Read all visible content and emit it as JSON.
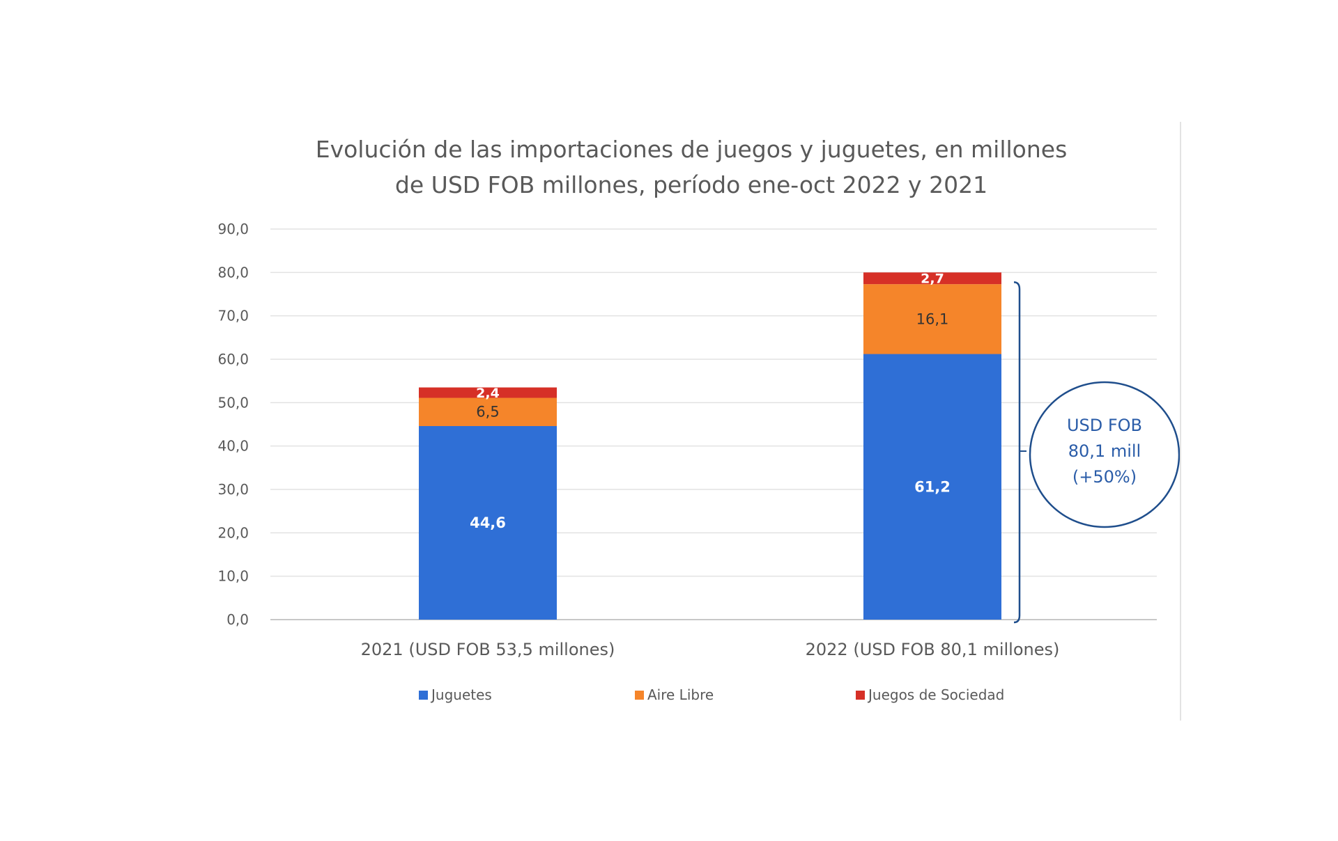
{
  "chart_data": {
    "type": "bar",
    "stacked": true,
    "title_lines": [
      "Evolución de las importaciones de juegos y juguetes, en millones",
      "de USD FOB millones, período ene-oct 2022 y 2021"
    ],
    "categories": [
      "2021 (USD FOB 53,5 millones)",
      "2022 (USD FOB 80,1 millones)"
    ],
    "series": [
      {
        "name": "Juguetes",
        "values": [
          44.6,
          61.2
        ],
        "labels": [
          "44,6",
          "61,2"
        ],
        "color": "#2f6fd6",
        "label_color": "#ffffff"
      },
      {
        "name": "Aire Libre",
        "values": [
          6.5,
          16.1
        ],
        "labels": [
          "6,5",
          "16,1"
        ],
        "color": "#f5852a",
        "label_color": "#333333"
      },
      {
        "name": "Juegos de Sociedad",
        "values": [
          2.4,
          2.7
        ],
        "labels": [
          "2,4",
          "2,7"
        ],
        "color": "#d63027",
        "label_color": "#ffffff"
      }
    ],
    "ylim": [
      0,
      90
    ],
    "yticks": [
      0,
      10,
      20,
      30,
      40,
      50,
      60,
      70,
      80,
      90
    ],
    "ytick_labels": [
      "0,0",
      "10,0",
      "20,0",
      "30,0",
      "40,0",
      "50,0",
      "60,0",
      "70,0",
      "80,0",
      "90,0"
    ],
    "grid": true,
    "legend_position": "bottom",
    "annotation": {
      "lines": [
        "USD FOB",
        "80,1 mill",
        "(+50%)"
      ],
      "color": "#1f4e8c",
      "attached_to": "2022 (USD FOB 80,1 millones)"
    }
  }
}
